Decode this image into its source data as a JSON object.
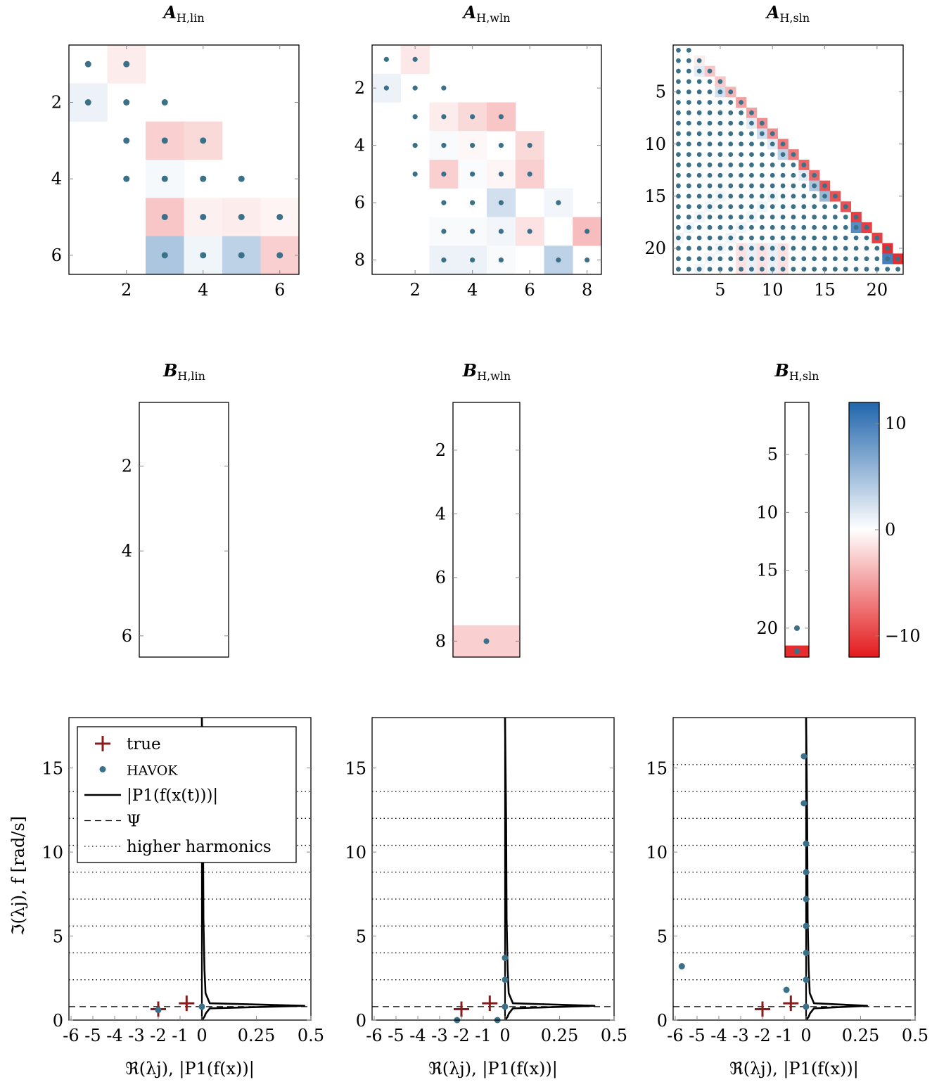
{
  "colors": {
    "positive": "#2166ac",
    "negative": "#e31a1c",
    "dot": "#3b7089",
    "true_marker": "#8b1a1a",
    "line": "#000000"
  },
  "chart_data": [
    {
      "id": "A_lin",
      "type": "heatmap",
      "title_main": "A",
      "title_sub": "H,lin",
      "n_rows": 6,
      "n_cols": 6,
      "xticks": [
        "2",
        "4",
        "6"
      ],
      "yticks": [
        "2",
        "4",
        "6"
      ],
      "cells": [
        {
          "r": 1,
          "c": 2,
          "v": -1.0,
          "dot": true
        },
        {
          "r": 1,
          "c": 1,
          "v": 0,
          "dot": true
        },
        {
          "r": 2,
          "c": 1,
          "v": 1.0,
          "dot": true
        },
        {
          "r": 2,
          "c": 2,
          "v": 0,
          "dot": true
        },
        {
          "r": 2,
          "c": 3,
          "v": 0,
          "dot": true
        },
        {
          "r": 3,
          "c": 2,
          "v": 0,
          "dot": true
        },
        {
          "r": 3,
          "c": 3,
          "v": -2.5,
          "dot": true
        },
        {
          "r": 3,
          "c": 4,
          "v": -2.0,
          "dot": true
        },
        {
          "r": 4,
          "c": 2,
          "v": 0,
          "dot": true
        },
        {
          "r": 4,
          "c": 3,
          "v": 0.5,
          "dot": true
        },
        {
          "r": 4,
          "c": 4,
          "v": 0,
          "dot": true
        },
        {
          "r": 4,
          "c": 5,
          "v": 0,
          "dot": true
        },
        {
          "r": 5,
          "c": 3,
          "v": -3.0,
          "dot": true
        },
        {
          "r": 5,
          "c": 4,
          "v": -0.8,
          "dot": true
        },
        {
          "r": 5,
          "c": 5,
          "v": -1.0,
          "dot": true
        },
        {
          "r": 5,
          "c": 6,
          "v": -0.6,
          "dot": true
        },
        {
          "r": 6,
          "c": 3,
          "v": 4.5,
          "dot": true
        },
        {
          "r": 6,
          "c": 4,
          "v": 0.8,
          "dot": true
        },
        {
          "r": 6,
          "c": 5,
          "v": 3.5,
          "dot": true
        },
        {
          "r": 6,
          "c": 6,
          "v": -2.5,
          "dot": true
        }
      ]
    },
    {
      "id": "A_wln",
      "type": "heatmap",
      "title_main": "A",
      "title_sub": "H,wln",
      "n_rows": 8,
      "n_cols": 8,
      "xticks": [
        "2",
        "4",
        "6",
        "8"
      ],
      "yticks": [
        "2",
        "4",
        "6",
        "8"
      ],
      "cells": [
        {
          "r": 1,
          "c": 1,
          "v": 0,
          "dot": true
        },
        {
          "r": 1,
          "c": 2,
          "v": -1.2,
          "dot": true
        },
        {
          "r": 2,
          "c": 1,
          "v": 1.0,
          "dot": true
        },
        {
          "r": 2,
          "c": 2,
          "v": 0,
          "dot": true
        },
        {
          "r": 2,
          "c": 3,
          "v": 0,
          "dot": true
        },
        {
          "r": 3,
          "c": 2,
          "v": 0,
          "dot": true
        },
        {
          "r": 3,
          "c": 3,
          "v": -1.0,
          "dot": true
        },
        {
          "r": 3,
          "c": 4,
          "v": -2.0,
          "dot": true
        },
        {
          "r": 3,
          "c": 5,
          "v": -3.0,
          "dot": true
        },
        {
          "r": 4,
          "c": 2,
          "v": 0,
          "dot": true
        },
        {
          "r": 4,
          "c": 3,
          "v": 0.4,
          "dot": true
        },
        {
          "r": 4,
          "c": 4,
          "v": -0.4,
          "dot": true
        },
        {
          "r": 4,
          "c": 5,
          "v": 0,
          "dot": true
        },
        {
          "r": 4,
          "c": 6,
          "v": -2.0,
          "dot": true
        },
        {
          "r": 5,
          "c": 2,
          "v": 0,
          "dot": true
        },
        {
          "r": 5,
          "c": 3,
          "v": -2.5,
          "dot": true
        },
        {
          "r": 5,
          "c": 4,
          "v": 0.3,
          "dot": true
        },
        {
          "r": 5,
          "c": 5,
          "v": -0.5,
          "dot": true
        },
        {
          "r": 5,
          "c": 6,
          "v": -2.5,
          "dot": true
        },
        {
          "r": 6,
          "c": 3,
          "v": 0,
          "dot": true
        },
        {
          "r": 6,
          "c": 4,
          "v": 0,
          "dot": true
        },
        {
          "r": 6,
          "c": 5,
          "v": 2.5,
          "dot": true
        },
        {
          "r": 6,
          "c": 6,
          "v": 0,
          "dot": false
        },
        {
          "r": 6,
          "c": 7,
          "v": 0.7,
          "dot": true
        },
        {
          "r": 7,
          "c": 3,
          "v": 0.4,
          "dot": true
        },
        {
          "r": 7,
          "c": 4,
          "v": 0.4,
          "dot": true
        },
        {
          "r": 7,
          "c": 5,
          "v": 0.7,
          "dot": true
        },
        {
          "r": 7,
          "c": 6,
          "v": -1.5,
          "dot": true
        },
        {
          "r": 7,
          "c": 8,
          "v": -3.5,
          "dot": true
        },
        {
          "r": 8,
          "c": 3,
          "v": 1.0,
          "dot": true
        },
        {
          "r": 8,
          "c": 4,
          "v": 1.0,
          "dot": true
        },
        {
          "r": 8,
          "c": 5,
          "v": 0.4,
          "dot": true
        },
        {
          "r": 8,
          "c": 7,
          "v": 3.5,
          "dot": true
        },
        {
          "r": 8,
          "c": 8,
          "v": 0,
          "dot": true
        }
      ]
    },
    {
      "id": "A_sln",
      "type": "heatmap",
      "title_main": "A",
      "title_sub": "H,sln",
      "n_rows": 22,
      "n_cols": 22,
      "xticks": [
        "5",
        "10",
        "15",
        "20"
      ],
      "yticks": [
        "5",
        "10",
        "15",
        "20"
      ],
      "pattern": "lower-triangular-dense",
      "diagonal_values": [
        0,
        0,
        1.5,
        0,
        2.5,
        0,
        0,
        1.5,
        2.5,
        1.5,
        3.5,
        0,
        1.5,
        4.5,
        5.5,
        0,
        0,
        9,
        0,
        0,
        10,
        0
      ],
      "superdiagonal_values": [
        0,
        -1,
        -3,
        -3,
        -4,
        -5,
        -5,
        -6,
        -6,
        -7,
        -7,
        -8,
        -8,
        -9,
        -9,
        -9,
        -10,
        -10,
        -10,
        -11,
        -11
      ]
    },
    {
      "id": "B_lin",
      "type": "heatmap",
      "title_main": "B",
      "title_sub": "H,lin",
      "n_rows": 6,
      "n_cols": 1,
      "xticks": [],
      "yticks": [
        "2",
        "4",
        "6"
      ],
      "cells": []
    },
    {
      "id": "B_wln",
      "type": "heatmap",
      "title_main": "B",
      "title_sub": "H,wln",
      "n_rows": 8,
      "n_cols": 1,
      "xticks": [],
      "yticks": [
        "2",
        "4",
        "6",
        "8"
      ],
      "cells": [
        {
          "r": 8,
          "c": 1,
          "v": -2.5,
          "dot": true
        }
      ]
    },
    {
      "id": "B_sln",
      "type": "heatmap",
      "title_main": "B",
      "title_sub": "H,sln",
      "n_rows": 22,
      "n_cols": 1,
      "xticks": [],
      "yticks": [
        "5",
        "10",
        "15",
        "20"
      ],
      "cells": [
        {
          "r": 20,
          "c": 1,
          "v": 0,
          "dot": true
        },
        {
          "r": 22,
          "c": 1,
          "v": -11,
          "dot": true
        }
      ]
    },
    {
      "id": "colorbar",
      "type": "colorbar",
      "vmin": -12,
      "vmax": 12,
      "ticks": [
        {
          "value": 10,
          "label": "10"
        },
        {
          "value": 0,
          "label": "0"
        },
        {
          "value": -10,
          "label": "−10"
        }
      ]
    },
    {
      "id": "spec_lin",
      "type": "scatter",
      "xticklabels": [
        "-6",
        "-5",
        "-4",
        "-3",
        "-2",
        "-1",
        "0",
        "0.25",
        "0.5"
      ],
      "xlabel": "ℜ(λj), |P1(f(x))|",
      "ylabel": "ℑ(λj), f [rad/s]",
      "ylim": [
        0,
        18
      ],
      "yticks": [
        0,
        5,
        10,
        15
      ],
      "psi": 0.8,
      "harmonics": [
        2.4,
        4.0,
        5.6,
        7.2,
        8.8,
        10.4,
        12.0,
        13.6
      ],
      "true_points": [
        [
          -2,
          0.65
        ],
        [
          -0.7,
          1.0
        ]
      ],
      "havok_points": [
        [
          -2,
          0.6
        ],
        [
          0,
          0.8
        ]
      ],
      "fft_peak": 0.47,
      "fft_base": 0.012
    },
    {
      "id": "spec_wln",
      "type": "scatter",
      "xticklabels": [
        "-6",
        "-5",
        "-4",
        "-3",
        "-2",
        "-1",
        "0",
        "0.25",
        "0.5"
      ],
      "xlabel": "ℜ(λj), |P1(f(x))|",
      "ylim": [
        0,
        18
      ],
      "yticks": [
        0,
        5,
        10,
        15
      ],
      "psi": 0.8,
      "harmonics": [
        2.4,
        4.0,
        5.6,
        7.2,
        8.8,
        10.4,
        12.0,
        13.6
      ],
      "true_points": [
        [
          -2,
          0.65
        ],
        [
          -0.7,
          1.0
        ]
      ],
      "havok_points": [
        [
          -2.2,
          0.0
        ],
        [
          -0.35,
          0.0
        ],
        [
          0,
          0.8
        ],
        [
          0,
          2.4
        ],
        [
          0,
          3.7
        ]
      ],
      "fft_peak": 0.41,
      "fft_base": 0.012
    },
    {
      "id": "spec_sln",
      "type": "scatter",
      "xticklabels": [
        "-6",
        "-5",
        "-4",
        "-3",
        "-2",
        "-1",
        "0",
        "0.25",
        "0.5"
      ],
      "xlabel": "ℜ(λj), |P1(f(x))|",
      "ylim": [
        0,
        18
      ],
      "yticks": [
        0,
        5,
        10,
        15
      ],
      "psi": 0.8,
      "harmonics": [
        2.4,
        4.0,
        5.6,
        7.2,
        8.8,
        10.4,
        12.0,
        13.6,
        15.2
      ],
      "true_points": [
        [
          -2,
          0.65
        ],
        [
          -0.7,
          1.0
        ]
      ],
      "havok_points": [
        [
          -5.7,
          3.2
        ],
        [
          -0.9,
          1.8
        ],
        [
          0,
          0.8
        ],
        [
          0,
          2.4
        ],
        [
          0,
          4.0
        ],
        [
          0,
          5.6
        ],
        [
          0,
          7.2
        ],
        [
          0,
          8.8
        ],
        [
          0,
          10.5
        ],
        [
          -0.1,
          12.9
        ],
        [
          -0.1,
          15.7
        ]
      ],
      "fft_peak": 0.28,
      "fft_base": 0.012
    }
  ],
  "legend": {
    "items": [
      {
        "label": "true",
        "kind": "plus"
      },
      {
        "label": "HAVOK",
        "kind": "dot"
      },
      {
        "label": "|P1(f(x(t)))|",
        "kind": "solid"
      },
      {
        "label": "Ψ",
        "kind": "dashed"
      },
      {
        "label": "higher harmonics",
        "kind": "dotted"
      }
    ]
  }
}
